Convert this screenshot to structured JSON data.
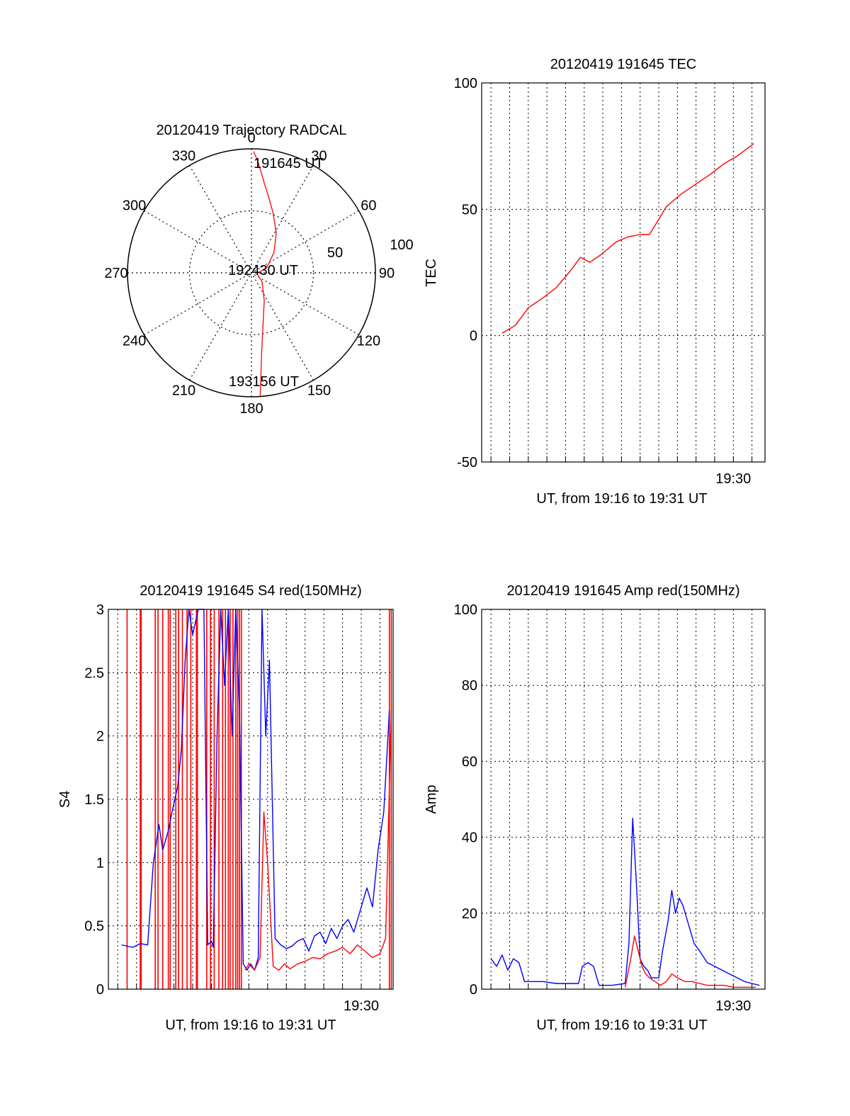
{
  "colors": {
    "red": "#ff0000",
    "blue": "#0000ff",
    "axis": "#000000",
    "grid": "#000000"
  },
  "chart_data": [
    {
      "type": "polar",
      "title": "20120419 Trajectory RADCAL",
      "angle_ticks": [
        "0",
        "30",
        "60",
        "90",
        "120",
        "150",
        "180",
        "210",
        "240",
        "270",
        "300",
        "330"
      ],
      "radial_ticks": [
        "50",
        "100"
      ],
      "annotations": {
        "start": "191645 UT",
        "middle": "192430 UT",
        "end": "193156 UT"
      },
      "grid": true,
      "series": [
        {
          "color": "#ff0000",
          "azimuth_deg": [
            1,
            3,
            5,
            8,
            13,
            20,
            32,
            48,
            70,
            100,
            130,
            155,
            168,
            173,
            175,
            176
          ],
          "zenith_deg": [
            88,
            82,
            75,
            66,
            56,
            46,
            34,
            22,
            12,
            4,
            10,
            22,
            40,
            60,
            78,
            90
          ]
        }
      ]
    },
    {
      "type": "line",
      "title": "20120419 191645 TEC",
      "xlabel": "UT, from 19:16 to 19:31 UT",
      "ylabel": "TEC",
      "xlim": [
        1156.5,
        1171.7
      ],
      "ylim": [
        -50,
        100
      ],
      "xticks": [
        {
          "value": 1170,
          "label": "19:30"
        }
      ],
      "yticks": [
        "-50",
        "0",
        "50",
        "100"
      ],
      "grid": true,
      "series": [
        {
          "color": "#ff0000",
          "x": [
            1157.6,
            1158.3,
            1159.0,
            1159.8,
            1160.5,
            1161.3,
            1161.8,
            1162.3,
            1162.9,
            1163.7,
            1164.3,
            1165.0,
            1165.5,
            1166.0,
            1166.4,
            1167.2,
            1168.0,
            1168.8,
            1169.5,
            1170.2,
            1171.1
          ],
          "y": [
            1,
            4,
            11,
            15,
            19,
            26,
            31,
            29,
            32,
            37,
            39,
            40,
            40,
            46,
            51,
            56,
            60,
            64,
            68,
            71,
            76
          ]
        }
      ]
    },
    {
      "type": "line",
      "title": "20120419 191645 S4 red(150MHz)",
      "xlabel": "UT, from 19:16 to 19:31 UT",
      "ylabel": "S4",
      "xlim": [
        1156.5,
        1171.7
      ],
      "ylim": [
        0,
        3
      ],
      "xticks": [
        {
          "value": 1170,
          "label": "19:30"
        }
      ],
      "yticks": [
        "0",
        "0.5",
        "1",
        "1.5",
        "2",
        "2.5",
        "3"
      ],
      "grid": true,
      "red_spike_times": [
        1157.5,
        1158.2,
        1158.25,
        1159.0,
        1159.15,
        1159.4,
        1159.7,
        1159.8,
        1160.1,
        1160.25,
        1160.45,
        1160.7,
        1160.9,
        1161.2,
        1161.25,
        1161.75,
        1161.95,
        1162.15,
        1162.4,
        1162.6,
        1162.75,
        1162.9,
        1163.0,
        1163.15,
        1163.3,
        1163.4,
        1163.5,
        1163.6,
        1171.5,
        1171.6
      ],
      "series": [
        {
          "color": "#0000ff",
          "x": [
            1157.2,
            1157.8,
            1158.2,
            1158.6,
            1158.9,
            1159.2,
            1159.4,
            1159.7,
            1159.9,
            1160.2,
            1160.4,
            1160.6,
            1160.8,
            1161.0,
            1161.3,
            1161.6,
            1161.8,
            1162.0,
            1162.1,
            1162.3,
            1162.5,
            1162.7,
            1162.9,
            1163.1,
            1163.3,
            1163.5,
            1163.7,
            1163.9,
            1164.1,
            1164.3,
            1164.5,
            1164.7,
            1164.9,
            1165.1,
            1165.4,
            1165.7,
            1166.0,
            1166.3,
            1166.6,
            1166.9,
            1167.2,
            1167.5,
            1167.8,
            1168.1,
            1168.4,
            1168.7,
            1169.0,
            1169.3,
            1169.6,
            1169.9,
            1170.3,
            1170.6,
            1170.9,
            1171.2,
            1171.5
          ],
          "y": [
            0.35,
            0.33,
            0.36,
            0.35,
            1.0,
            1.3,
            1.1,
            1.25,
            1.4,
            1.6,
            1.9,
            2.6,
            3.0,
            2.8,
            3.0,
            3.0,
            0.35,
            0.38,
            0.33,
            2.0,
            3.0,
            2.4,
            3.0,
            2.0,
            3.0,
            2.2,
            0.2,
            0.15,
            0.2,
            0.15,
            0.25,
            3.0,
            2.0,
            2.6,
            0.4,
            0.35,
            0.32,
            0.34,
            0.38,
            0.4,
            0.3,
            0.42,
            0.45,
            0.36,
            0.48,
            0.4,
            0.5,
            0.55,
            0.45,
            0.6,
            0.8,
            0.65,
            1.1,
            1.4,
            2.2
          ]
        },
        {
          "color": "#ff0000",
          "x": [
            1163.8,
            1164.0,
            1164.3,
            1164.6,
            1164.8,
            1165.0,
            1165.3,
            1165.6,
            1165.9,
            1166.2,
            1166.6,
            1167.0,
            1167.4,
            1167.8,
            1168.2,
            1168.6,
            1169.0,
            1169.4,
            1169.8,
            1170.2,
            1170.6,
            1171.0,
            1171.3,
            1171.6
          ],
          "y": [
            0.15,
            0.2,
            0.15,
            0.25,
            1.4,
            1.0,
            0.18,
            0.15,
            0.2,
            0.16,
            0.2,
            0.22,
            0.25,
            0.24,
            0.28,
            0.3,
            0.33,
            0.28,
            0.35,
            0.3,
            0.25,
            0.28,
            0.4,
            2.2
          ]
        }
      ]
    },
    {
      "type": "line",
      "title": "20120419 191645 Amp red(150MHz)",
      "xlabel": "UT, from 19:16 to 19:31 UT",
      "ylabel": "Amp",
      "xlim": [
        1156.5,
        1171.7
      ],
      "ylim": [
        0,
        100
      ],
      "xticks": [
        {
          "value": 1170,
          "label": "19:30"
        }
      ],
      "yticks": [
        "0",
        "20",
        "40",
        "60",
        "80",
        "100"
      ],
      "grid": true,
      "series": [
        {
          "color": "#0000ff",
          "x": [
            1157.0,
            1157.3,
            1157.6,
            1157.9,
            1158.2,
            1158.5,
            1158.8,
            1159.2,
            1159.8,
            1160.5,
            1161.2,
            1161.7,
            1161.9,
            1162.2,
            1162.5,
            1162.8,
            1163.5,
            1164.2,
            1164.4,
            1164.6,
            1164.8,
            1165.0,
            1165.2,
            1165.4,
            1165.6,
            1166.0,
            1166.2,
            1166.5,
            1166.7,
            1166.9,
            1167.1,
            1167.3,
            1167.6,
            1167.9,
            1168.2,
            1168.6,
            1169.0,
            1169.4,
            1169.8,
            1170.2,
            1170.6,
            1171.0,
            1171.4
          ],
          "y": [
            8,
            6,
            9,
            5,
            8,
            7,
            2,
            2,
            2,
            1.5,
            1.5,
            1.5,
            6,
            7,
            6,
            1,
            1,
            1.5,
            12,
            45,
            28,
            8,
            6,
            5,
            3,
            3,
            10,
            18,
            26,
            20,
            24,
            22,
            17,
            12,
            10,
            7,
            6,
            5,
            4,
            3,
            2,
            1.5,
            1
          ]
        },
        {
          "color": "#ff0000",
          "x": [
            1164.2,
            1164.5,
            1164.7,
            1164.9,
            1165.1,
            1165.3,
            1165.5,
            1165.8,
            1166.1,
            1166.4,
            1166.7,
            1167.0,
            1167.4,
            1167.8,
            1168.2,
            1168.6,
            1169.0,
            1169.5,
            1170.0,
            1170.6,
            1171.2
          ],
          "y": [
            0.5,
            8,
            14,
            10,
            6,
            4,
            3,
            2,
            1,
            2,
            4,
            3,
            2,
            2,
            1.5,
            1,
            1,
            1,
            0.5,
            0.5,
            0.5
          ]
        }
      ]
    }
  ]
}
